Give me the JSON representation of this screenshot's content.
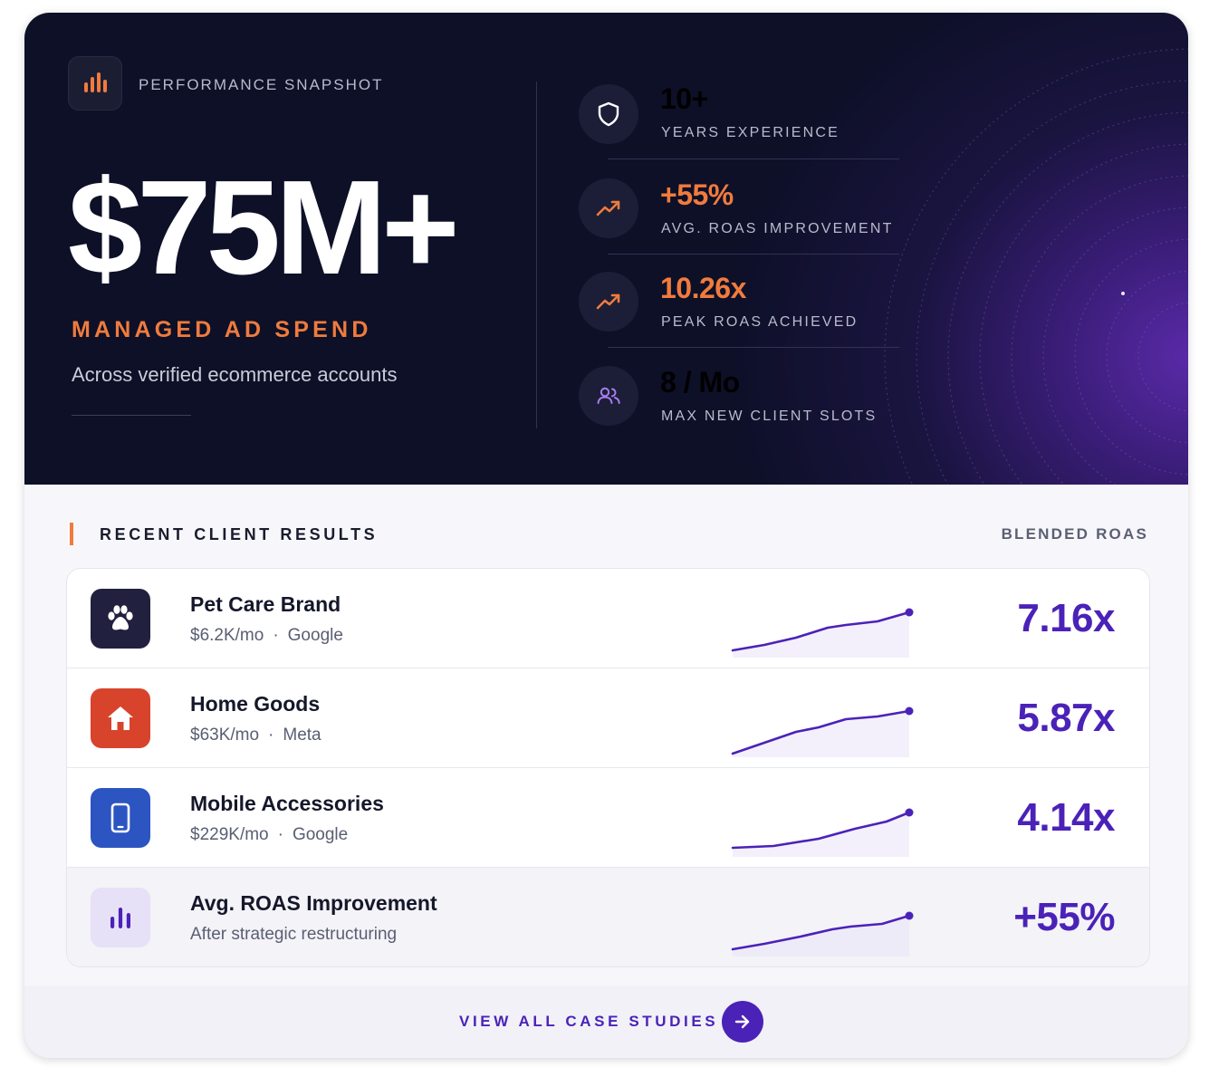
{
  "hero": {
    "snapshot_label": "PERFORMANCE SNAPSHOT",
    "headline": "$75M+",
    "headline_caption": "MANAGED AD SPEND",
    "subtext": "Across verified ecommerce accounts",
    "stats": [
      {
        "value": "10+",
        "label": "YEARS EXPERIENCE",
        "icon": "shield-icon",
        "value_color": "#ffffff"
      },
      {
        "value": "+55%",
        "label": "AVG. ROAS IMPROVEMENT",
        "icon": "trending-up-icon",
        "value_color": "#f07b3d"
      },
      {
        "value": "10.26x",
        "label": "PEAK ROAS ACHIEVED",
        "icon": "trending-up-icon",
        "value_color": "#f07b3d"
      },
      {
        "value": "8 / Mo",
        "label": "MAX NEW CLIENT SLOTS",
        "icon": "users-icon",
        "value_color": "#ffffff"
      }
    ]
  },
  "results": {
    "title": "RECENT CLIENT RESULTS",
    "column_label": "BLENDED ROAS",
    "rows": [
      {
        "name": "Pet Care Brand",
        "spend": "$6.2K/mo",
        "separator": "·",
        "platform": "Google",
        "roas": "7.16x",
        "icon": "paw-icon",
        "icon_bg": "#22203f"
      },
      {
        "name": "Home Goods",
        "spend": "$63K/mo",
        "separator": "·",
        "platform": "Meta",
        "roas": "5.87x",
        "icon": "home-icon",
        "icon_bg": "#d8432c"
      },
      {
        "name": "Mobile Accessories",
        "spend": "$229K/mo",
        "separator": "·",
        "platform": "Google",
        "roas": "4.14x",
        "icon": "phone-icon",
        "icon_bg": "#2c55c2"
      },
      {
        "name": "Avg. ROAS Improvement",
        "meta": "After strategic restructuring",
        "roas": "+55%",
        "icon": "bar-chart-icon",
        "icon_bg": "#e6e1f7"
      }
    ]
  },
  "footer": {
    "link_label": "VIEW ALL CASE STUDIES",
    "button_icon": "arrow-right-icon"
  },
  "colors": {
    "accent_orange": "#f07b3d",
    "accent_purple": "#4b22b8",
    "hero_bg": "#0d1027"
  }
}
